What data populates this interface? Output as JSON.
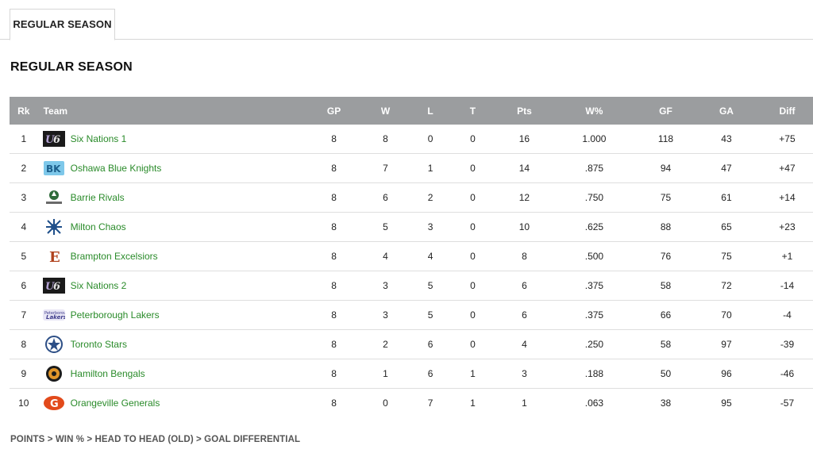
{
  "tabs": [
    {
      "label": "REGULAR SEASON"
    }
  ],
  "section_title": "REGULAR SEASON",
  "columns": [
    "Rk",
    "Team",
    "GP",
    "W",
    "L",
    "T",
    "Pts",
    "W%",
    "GF",
    "GA",
    "Diff"
  ],
  "rows": [
    {
      "rk": "1",
      "team": "Six Nations 1",
      "logo": "six-nations-logo",
      "gp": "8",
      "w": "8",
      "l": "0",
      "t": "0",
      "pts": "16",
      "wp": "1.000",
      "gf": "118",
      "ga": "43",
      "diff": "+75"
    },
    {
      "rk": "2",
      "team": "Oshawa Blue Knights",
      "logo": "oshawa-blue-knights-logo",
      "gp": "8",
      "w": "7",
      "l": "1",
      "t": "0",
      "pts": "14",
      "wp": ".875",
      "gf": "94",
      "ga": "47",
      "diff": "+47"
    },
    {
      "rk": "3",
      "team": "Barrie Rivals",
      "logo": "barrie-rivals-logo",
      "gp": "8",
      "w": "6",
      "l": "2",
      "t": "0",
      "pts": "12",
      "wp": ".750",
      "gf": "75",
      "ga": "61",
      "diff": "+14"
    },
    {
      "rk": "4",
      "team": "Milton Chaos",
      "logo": "milton-chaos-logo",
      "gp": "8",
      "w": "5",
      "l": "3",
      "t": "0",
      "pts": "10",
      "wp": ".625",
      "gf": "88",
      "ga": "65",
      "diff": "+23"
    },
    {
      "rk": "5",
      "team": "Brampton Excelsiors",
      "logo": "brampton-excelsiors-logo",
      "gp": "8",
      "w": "4",
      "l": "4",
      "t": "0",
      "pts": "8",
      "wp": ".500",
      "gf": "76",
      "ga": "75",
      "diff": "+1"
    },
    {
      "rk": "6",
      "team": "Six Nations 2",
      "logo": "six-nations-logo",
      "gp": "8",
      "w": "3",
      "l": "5",
      "t": "0",
      "pts": "6",
      "wp": ".375",
      "gf": "58",
      "ga": "72",
      "diff": "-14"
    },
    {
      "rk": "7",
      "team": "Peterborough Lakers",
      "logo": "peterborough-lakers-logo",
      "gp": "8",
      "w": "3",
      "l": "5",
      "t": "0",
      "pts": "6",
      "wp": ".375",
      "gf": "66",
      "ga": "70",
      "diff": "-4"
    },
    {
      "rk": "8",
      "team": "Toronto Stars",
      "logo": "toronto-stars-logo",
      "gp": "8",
      "w": "2",
      "l": "6",
      "t": "0",
      "pts": "4",
      "wp": ".250",
      "gf": "58",
      "ga": "97",
      "diff": "-39"
    },
    {
      "rk": "9",
      "team": "Hamilton Bengals",
      "logo": "hamilton-bengals-logo",
      "gp": "8",
      "w": "1",
      "l": "6",
      "t": "1",
      "pts": "3",
      "wp": ".188",
      "gf": "50",
      "ga": "96",
      "diff": "-46"
    },
    {
      "rk": "10",
      "team": "Orangeville Generals",
      "logo": "orangeville-generals-logo",
      "gp": "8",
      "w": "0",
      "l": "7",
      "t": "1",
      "pts": "1",
      "wp": ".063",
      "gf": "38",
      "ga": "95",
      "diff": "-57"
    }
  ],
  "footer_note": "POINTS > WIN % > HEAD TO HEAD (OLD) > GOAL DIFFERENTIAL",
  "colors": {
    "header_bg": "#9b9d9f",
    "team_link": "#2a8b2a",
    "row_border": "#dedede"
  }
}
